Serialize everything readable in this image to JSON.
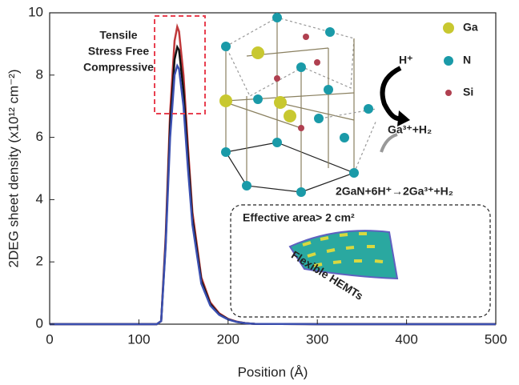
{
  "chart_data": {
    "type": "line",
    "x": [
      0,
      100,
      120,
      125,
      130,
      135,
      140,
      143,
      145,
      150,
      155,
      160,
      170,
      180,
      190,
      200,
      210,
      220,
      230,
      300,
      400,
      500
    ],
    "series": [
      {
        "name": "Tensile",
        "color": "#c0393b",
        "values": [
          0,
          0,
          0,
          0.1,
          2.8,
          6.8,
          9.1,
          9.55,
          9.4,
          8.0,
          5.7,
          3.6,
          1.5,
          0.7,
          0.35,
          0.17,
          0.08,
          0.03,
          0.01,
          0,
          0,
          0
        ]
      },
      {
        "name": "Stress Free",
        "color": "#111111",
        "values": [
          0,
          0,
          0,
          0.1,
          2.6,
          6.4,
          8.5,
          8.9,
          8.8,
          7.5,
          5.4,
          3.4,
          1.4,
          0.65,
          0.32,
          0.16,
          0.07,
          0.03,
          0.01,
          0,
          0,
          0
        ]
      },
      {
        "name": "Compressive",
        "color": "#3b4fb0",
        "values": [
          0,
          0,
          0,
          0.1,
          2.5,
          6.0,
          8.0,
          8.3,
          8.2,
          7.0,
          5.0,
          3.2,
          1.3,
          0.6,
          0.3,
          0.15,
          0.07,
          0.03,
          0.01,
          0,
          0,
          0
        ]
      }
    ],
    "xlabel": "Position (Å)",
    "ylabel": "2DEG sheet density (x10¹² cm⁻²)",
    "xlim": [
      0,
      500
    ],
    "xticks": [
      0,
      100,
      200,
      300,
      400,
      500
    ],
    "ylim": [
      0,
      10
    ],
    "yticks": [
      0,
      2,
      4,
      6,
      8,
      10
    ],
    "annotations": [
      "Ga",
      "N",
      "Si",
      "H⁺",
      "Ga³⁺+H₂",
      "2GaN+6H⁺→2Ga³⁺+H₂",
      "Effective area> 2 cm²",
      "Flexible HEMTs"
    ]
  }
}
